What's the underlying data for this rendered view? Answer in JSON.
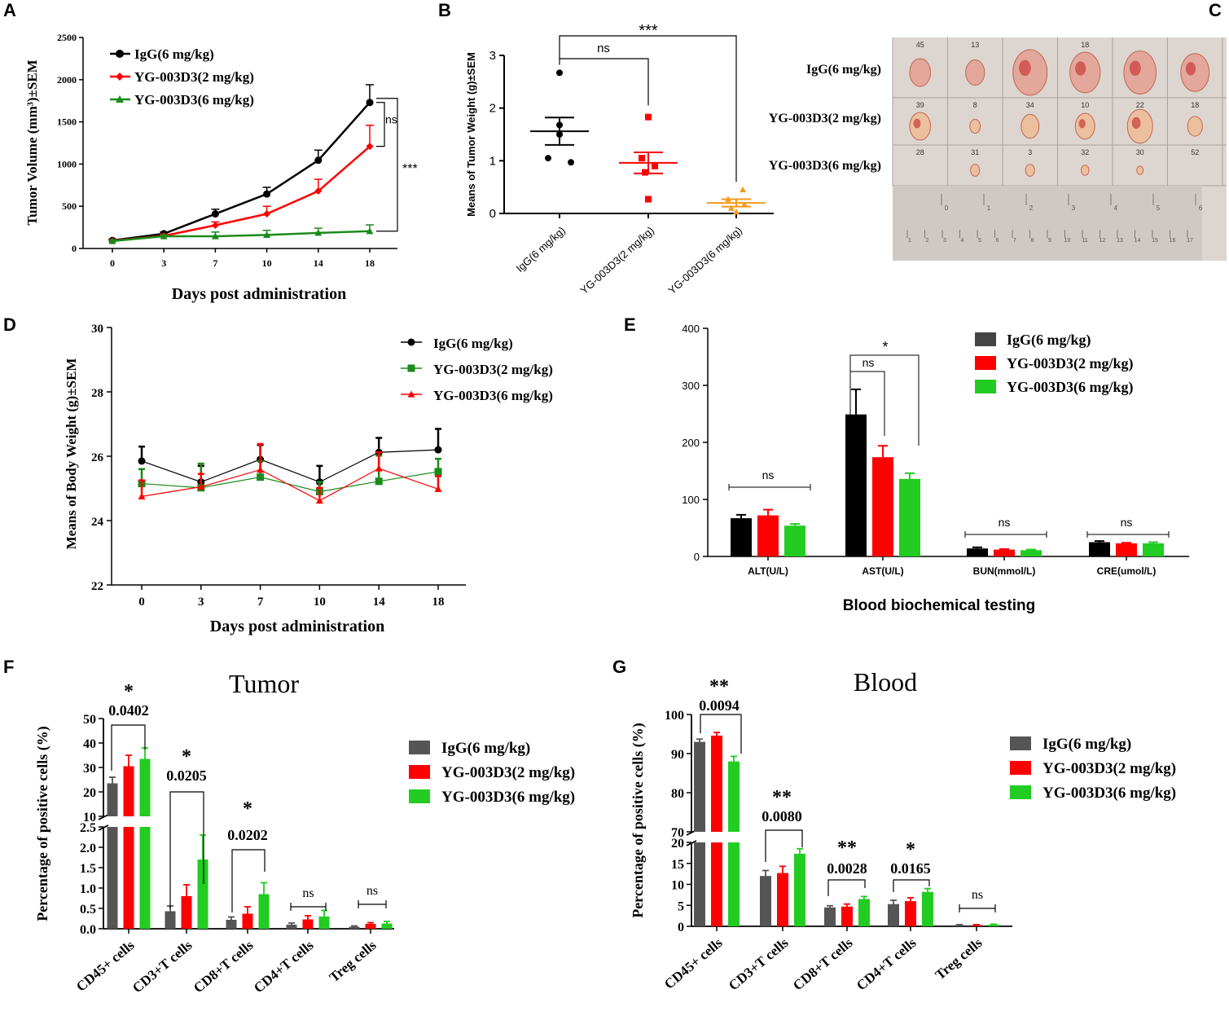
{
  "panel_letters": [
    "A",
    "B",
    "C",
    "D",
    "E",
    "F",
    "G"
  ],
  "colors": {
    "black": "#000000",
    "red": "#ff0000",
    "dark_green": "#1a8a1a",
    "bright_green": "#22cc22",
    "orange": "#f59a1b",
    "grey": "#555555"
  },
  "chart_data": [
    {
      "id": "A",
      "type": "line",
      "title": "",
      "xlabel": "Days post administration",
      "ylabel": "Tumor Volume (mm³)±SEM",
      "x": [
        0,
        3,
        7,
        10,
        14,
        18
      ],
      "x_ticks": [
        "0",
        "3",
        "7",
        "10",
        "14",
        "18"
      ],
      "y_ticks": [
        "0",
        "500",
        "1000",
        "1500",
        "2000",
        "2500"
      ],
      "ylim": [
        0,
        2500
      ],
      "legend": "top-left",
      "series": [
        {
          "name": "IgG(6 mg/kg)",
          "color": "#000000",
          "marker": "circle",
          "values": [
            95,
            175,
            410,
            645,
            1045,
            1730
          ],
          "err": [
            15,
            20,
            55,
            80,
            120,
            210
          ]
        },
        {
          "name": "YG-003D3(2 mg/kg)",
          "color": "#ff0000",
          "marker": "diamond",
          "values": [
            90,
            150,
            275,
            410,
            680,
            1210
          ],
          "err": [
            15,
            20,
            40,
            90,
            140,
            250
          ]
        },
        {
          "name": "YG-003D3(6 mg/kg)",
          "color": "#1a8a1a",
          "marker": "triangle",
          "values": [
            88,
            145,
            145,
            160,
            185,
            205
          ],
          "err": [
            12,
            15,
            50,
            55,
            55,
            75
          ]
        }
      ],
      "annotations": [
        "ns",
        "***"
      ]
    },
    {
      "id": "B",
      "type": "scatter",
      "xlabel": "",
      "ylabel": "Means of Tumor Weight (g)±SEM",
      "categories": [
        "IgG(6 mg/kg)",
        "YG-003D3(2 mg/kg)",
        "YG-003D3(6 mg/kg)"
      ],
      "y_ticks": [
        "0",
        "1",
        "2",
        "3"
      ],
      "ylim": [
        0,
        3
      ],
      "groups": [
        {
          "name": "IgG(6 mg/kg)",
          "color": "#000000",
          "marker": "circle",
          "points": [
            2.67,
            1.68,
            1.5,
            1.05,
            0.97
          ],
          "mean": 1.56,
          "sem": 0.26
        },
        {
          "name": "YG-003D3(2 mg/kg)",
          "color": "#ff0000",
          "marker": "square",
          "points": [
            1.83,
            1.05,
            0.9,
            0.78,
            0.27
          ],
          "mean": 0.96,
          "sem": 0.2
        },
        {
          "name": "YG-003D3(6 mg/kg)",
          "color": "#f59a1b",
          "marker": "triangle",
          "points": [
            0.45,
            0.27,
            0.17,
            0.1,
            0.03
          ],
          "mean": 0.2,
          "sem": 0.07
        }
      ],
      "annotations": [
        "ns",
        "***"
      ]
    },
    {
      "id": "D",
      "type": "line",
      "xlabel": "Days post administration",
      "ylabel": "Means of Body Weight (g)±SEM",
      "x": [
        0,
        3,
        7,
        10,
        14,
        18
      ],
      "x_ticks": [
        "0",
        "3",
        "7",
        "10",
        "14",
        "18"
      ],
      "y_ticks": [
        "22",
        "24",
        "26",
        "28",
        "30"
      ],
      "ylim": [
        22,
        30
      ],
      "legend": "top-right",
      "series": [
        {
          "name": "IgG(6 mg/kg)",
          "color": "#000000",
          "marker": "circle",
          "values": [
            25.85,
            25.2,
            25.9,
            25.2,
            26.12,
            26.2
          ],
          "err": [
            0.45,
            0.5,
            0.45,
            0.5,
            0.45,
            0.65
          ]
        },
        {
          "name": "YG-003D3(2 mg/kg)",
          "color": "#1a8a1a",
          "marker": "square",
          "values": [
            25.15,
            25.02,
            25.35,
            24.9,
            25.22,
            25.52
          ],
          "err": [
            0.45,
            0.75,
            0.5,
            0.3,
            0.8,
            0.4
          ]
        },
        {
          "name": "YG-003D3(6 mg/kg)",
          "color": "#ff0000",
          "marker": "triangle",
          "values": [
            24.75,
            25.05,
            25.58,
            24.62,
            25.62,
            24.98
          ],
          "err": [
            0.5,
            0.4,
            0.8,
            0.4,
            0.5,
            0.4
          ]
        }
      ]
    },
    {
      "id": "E",
      "type": "bar",
      "xlabel": "Blood biochemical testing",
      "ylabel": "",
      "categories": [
        "ALT(U/L)",
        "AST(U/L)",
        "BUN(mmol/L)",
        "CRE(umol/L)"
      ],
      "y_ticks": [
        "0",
        "100",
        "200",
        "300",
        "400"
      ],
      "ylim": [
        0,
        400
      ],
      "legend": "top-right",
      "series": [
        {
          "name": "IgG(6 mg/kg)",
          "color": "#000000",
          "values": [
            67,
            249,
            14,
            25
          ],
          "err": [
            6,
            44,
            2,
            2
          ]
        },
        {
          "name": "YG-003D3(2 mg/kg)",
          "color": "#ff0000",
          "values": [
            72,
            174,
            12,
            23
          ],
          "err": [
            10,
            20,
            1,
            1
          ]
        },
        {
          "name": "YG-003D3(6 mg/kg)",
          "color": "#22cc22",
          "values": [
            54,
            136,
            11,
            23
          ],
          "err": [
            3,
            10,
            1,
            2
          ]
        }
      ],
      "annotations": [
        "ns",
        "ns",
        "*",
        "ns",
        "ns"
      ]
    },
    {
      "id": "F",
      "type": "bar",
      "title": "Tumor",
      "xlabel": "",
      "ylabel": "Percentage of positive cells (%)",
      "categories": [
        "CD45+ cells",
        "CD3+T cells",
        "CD8+T cells",
        "CD4+T cells",
        "Treg cells"
      ],
      "y_ticks_lower": [
        "0.0",
        "0.5",
        "1.0",
        "1.5",
        "2.0",
        "2.5"
      ],
      "y_ticks_upper": [
        "10",
        "20",
        "30",
        "40",
        "50"
      ],
      "ylim_lower": [
        0,
        2.5
      ],
      "ylim_upper": [
        10,
        50
      ],
      "legend": "right",
      "series": [
        {
          "name": "IgG(6 mg/kg)",
          "color": "#555555",
          "values": [
            23.5,
            0.43,
            0.22,
            0.1,
            0.05
          ],
          "err": [
            2.5,
            0.13,
            0.07,
            0.04,
            0.02
          ]
        },
        {
          "name": "YG-003D3(2 mg/kg)",
          "color": "#ff0000",
          "values": [
            30.5,
            0.8,
            0.37,
            0.23,
            0.12
          ],
          "err": [
            4.5,
            0.28,
            0.17,
            0.09,
            0.03
          ]
        },
        {
          "name": "YG-003D3(6 mg/kg)",
          "color": "#22cc22",
          "values": [
            33.5,
            1.7,
            0.85,
            0.3,
            0.13
          ],
          "err": [
            4.5,
            0.6,
            0.28,
            0.15,
            0.05
          ]
        }
      ],
      "annotations": [
        {
          "star": "*",
          "p": "0.0402"
        },
        {
          "star": "*",
          "p": "0.0205"
        },
        {
          "star": "*",
          "p": "0.0202"
        },
        {
          "star": "ns",
          "p": ""
        },
        {
          "star": "ns",
          "p": ""
        }
      ]
    },
    {
      "id": "G",
      "type": "bar",
      "title": "Blood",
      "xlabel": "",
      "ylabel": "Percentage of positive cells (%)",
      "categories": [
        "CD45+ cells",
        "CD3+T cells",
        "CD8+T cells",
        "CD4+T cells",
        "Treg cells"
      ],
      "y_ticks_lower": [
        "0",
        "5",
        "10",
        "15",
        "20"
      ],
      "y_ticks_upper": [
        "70",
        "80",
        "90",
        "100"
      ],
      "ylim_lower": [
        0,
        20
      ],
      "ylim_upper": [
        70,
        100
      ],
      "legend": "right",
      "series": [
        {
          "name": "IgG(6 mg/kg)",
          "color": "#555555",
          "values": [
            93,
            12,
            4.5,
            5.3,
            0.3
          ],
          "err": [
            0.7,
            1.3,
            0.4,
            0.9,
            0.1
          ]
        },
        {
          "name": "YG-003D3(2 mg/kg)",
          "color": "#ff0000",
          "values": [
            94.6,
            12.7,
            4.7,
            6,
            0.3
          ],
          "err": [
            0.8,
            1.6,
            0.6,
            0.8,
            0.1
          ]
        },
        {
          "name": "YG-003D3(6 mg/kg)",
          "color": "#22cc22",
          "values": [
            88,
            17.3,
            6.5,
            8.2,
            0.4
          ],
          "err": [
            1.3,
            1.2,
            0.6,
            0.8,
            0.1
          ]
        }
      ],
      "annotations": [
        {
          "star": "**",
          "p": "0.0094"
        },
        {
          "star": "**",
          "p": "0.0080"
        },
        {
          "star": "**",
          "p": "0.0028"
        },
        {
          "star": "*",
          "p": "0.0165"
        },
        {
          "star": "ns",
          "p": ""
        }
      ]
    }
  ],
  "photo": {
    "row_labels": [
      "IgG(6 mg/kg)",
      "YG-003D3(2 mg/kg)",
      "YG-003D3(6 mg/kg)"
    ],
    "tag_numbers": [
      [
        "45",
        "13",
        "",
        "18",
        "",
        ""
      ],
      [
        "39",
        "8",
        "34",
        "10",
        "22",
        "18"
      ],
      [
        "28",
        "31",
        "3",
        "32",
        "30",
        "52"
      ]
    ],
    "tumor_sizes": [
      [
        0.55,
        0.5,
        0.9,
        0.8,
        0.85,
        0.75
      ],
      [
        0.7,
        0.35,
        0.6,
        0.65,
        0.85,
        0.5
      ],
      [
        0,
        0.35,
        0.35,
        0.3,
        0.25,
        0
      ]
    ],
    "ruler_top": [
      "0",
      "1",
      "2",
      "3",
      "4",
      "5",
      "6"
    ],
    "ruler_bottom": [
      "1",
      "2",
      "3",
      "4",
      "5",
      "6",
      "7",
      "8",
      "9",
      "10",
      "11",
      "12",
      "13",
      "14",
      "15",
      "16",
      "17"
    ]
  }
}
